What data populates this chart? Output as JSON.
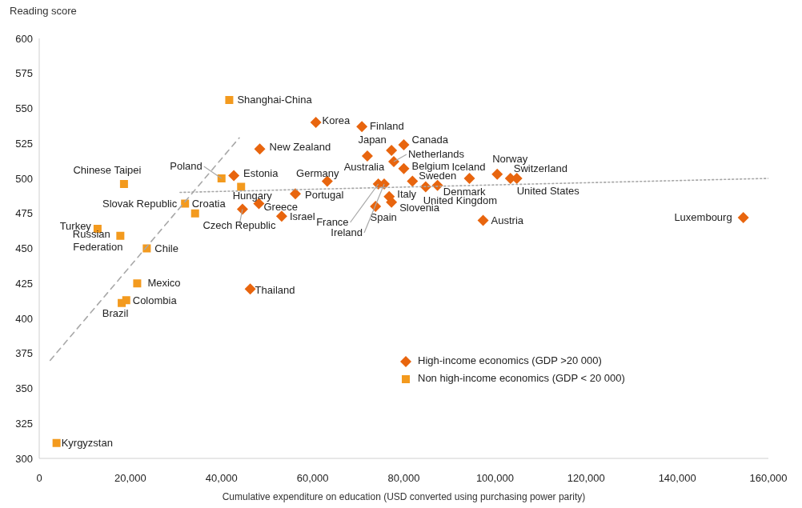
{
  "chart_data": {
    "type": "scatter",
    "xlabel": "Cumulative expenditure on education (USD converted using purchasing power parity)",
    "ylabel": "Reading score",
    "xlim": [
      0,
      160000
    ],
    "xticks": [
      0,
      {
        "value": 20000,
        "label": "20,000"
      },
      {
        "value": 40000,
        "label": "40,000"
      },
      {
        "value": 60000,
        "label": "60,000"
      },
      {
        "value": 80000,
        "label": "80,000"
      },
      {
        "value": 100000,
        "label": "100,000"
      },
      {
        "value": 120000,
        "label": "120,000"
      },
      {
        "value": 140000,
        "label": "140,000"
      },
      {
        "value": 160000,
        "label": "160,000"
      }
    ],
    "ylim": [
      300,
      600
    ],
    "yticks": [
      300,
      325,
      350,
      375,
      400,
      425,
      450,
      475,
      500,
      525,
      550,
      575,
      600
    ],
    "legend": "bottom right",
    "series": [
      {
        "name": "High-income economics (GDP >20 000)",
        "color": "#e8650e",
        "marker": "diamond",
        "x": [
          60700,
          70800,
          48400,
          77300,
          72000,
          80000,
          77800,
          80000,
          94400,
          100500,
          103400,
          104800,
          81900,
          84800,
          87400,
          76800,
          77300,
          73800,
          74400,
          75700,
          97400,
          154500,
          63200,
          42700,
          56200,
          48200,
          44600,
          53200,
          46300
        ],
        "values": [
          540,
          537,
          521,
          520,
          516,
          524,
          512,
          507,
          500,
          503,
          500,
          500,
          498,
          494,
          495,
          487,
          483,
          480,
          496,
          496,
          470,
          472,
          498,
          502,
          489,
          482,
          478,
          473,
          421
        ]
      },
      {
        "name": "Non high-income economics (GDP < 20 000)",
        "color": "#f39a1e",
        "marker": "square",
        "x": [
          41700,
          18600,
          40000,
          44300,
          32000,
          34200,
          12800,
          17800,
          23600,
          21500,
          19100,
          18100,
          3800
        ],
        "values": [
          556,
          496,
          500,
          494,
          482,
          475,
          464,
          459,
          450,
          425,
          413,
          411,
          311
        ]
      },
      {
        "type": "line",
        "color": "#a8a8a8",
        "marker": "none",
        "line_style": "dashed",
        "x": [
          2400,
          43900
        ],
        "values": [
          370,
          529
        ]
      },
      {
        "type": "line",
        "color": "#a8a8a8",
        "marker": "none",
        "line_style": "dotted",
        "x": [
          30900,
          160000
        ],
        "values": [
          490,
          500
        ]
      }
    ],
    "annotations": [
      {
        "text": "Korea",
        "x": 60700,
        "y": 540
      },
      {
        "text": "Finland",
        "x": 70800,
        "y": 537
      },
      {
        "text": "New Zealand",
        "x": 48400,
        "y": 521
      },
      {
        "text": "Japan",
        "x": 77300,
        "y": 520
      },
      {
        "text": "Australia",
        "x": 72000,
        "y": 516
      },
      {
        "text": "Canada",
        "x": 80000,
        "y": 524
      },
      {
        "text": "Netherlands",
        "x": 77800,
        "y": 512
      },
      {
        "text": "Belgium",
        "x": 80000,
        "y": 507
      },
      {
        "text": "Iceland",
        "x": 94400,
        "y": 500
      },
      {
        "text": "Norway",
        "x": 100500,
        "y": 503
      },
      {
        "text": "Switzerland",
        "x": 103400,
        "y": 500
      },
      {
        "text": "United States",
        "x": 104800,
        "y": 500
      },
      {
        "text": "Sweden",
        "x": 81900,
        "y": 498
      },
      {
        "text": "Denmark",
        "x": 84800,
        "y": 494
      },
      {
        "text": "United Kingdom",
        "x": 87400,
        "y": 495
      },
      {
        "text": "Italy",
        "x": 76800,
        "y": 487
      },
      {
        "text": "Slovenia",
        "x": 77300,
        "y": 483
      },
      {
        "text": "Spain",
        "x": 73800,
        "y": 480
      },
      {
        "text": "France",
        "x": 74400,
        "y": 496
      },
      {
        "text": "Ireland",
        "x": 75700,
        "y": 496
      },
      {
        "text": "Austria",
        "x": 97400,
        "y": 470
      },
      {
        "text": "Luxembourg",
        "x": 154500,
        "y": 472
      },
      {
        "text": "Germany",
        "x": 63200,
        "y": 498
      },
      {
        "text": "Estonia",
        "x": 42700,
        "y": 502
      },
      {
        "text": "Portugal",
        "x": 56200,
        "y": 489
      },
      {
        "text": "Greece",
        "x": 48200,
        "y": 482
      },
      {
        "text": "Czech Republic",
        "x": 44600,
        "y": 478
      },
      {
        "text": "Israel",
        "x": 53200,
        "y": 473
      },
      {
        "text": "Thailand",
        "x": 46300,
        "y": 421
      },
      {
        "text": "Shanghai-China",
        "x": 41700,
        "y": 556
      },
      {
        "text": "Chinese Taipei",
        "x": 18600,
        "y": 496
      },
      {
        "text": "Poland",
        "x": 40000,
        "y": 500
      },
      {
        "text": "Hungary",
        "x": 44300,
        "y": 494
      },
      {
        "text": "Slovak Republic",
        "x": 32000,
        "y": 482
      },
      {
        "text": "Croatia",
        "x": 34200,
        "y": 475
      },
      {
        "text": "Turkey",
        "x": 12800,
        "y": 464
      },
      {
        "text": "Russian Federation",
        "x": 17800,
        "y": 459
      },
      {
        "text": "Chile",
        "x": 23600,
        "y": 450
      },
      {
        "text": "Mexico",
        "x": 21500,
        "y": 425
      },
      {
        "text": "Colombia",
        "x": 19100,
        "y": 413
      },
      {
        "text": "Brazil",
        "x": 18100,
        "y": 411
      },
      {
        "text": "Kyrgyzstan",
        "x": 3800,
        "y": 311
      }
    ]
  }
}
